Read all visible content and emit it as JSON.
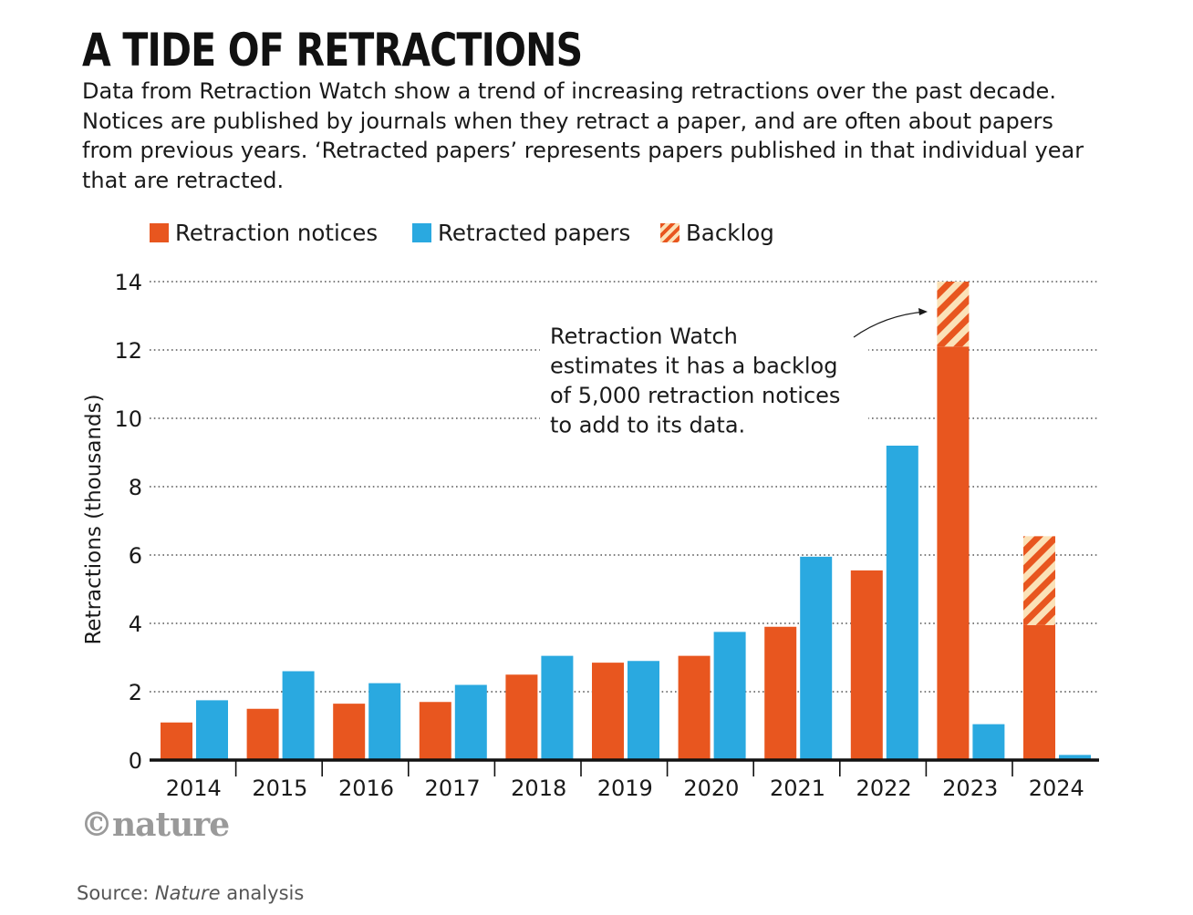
{
  "title": "A TIDE OF RETRACTIONS",
  "subtitle": "Data from Retraction Watch show a trend of increasing retractions over the past decade. Notices are published by journals when they retract a paper, and are often about papers from previous years. ‘Retracted papers’ represents papers published in that individual year that are retracted.",
  "legend": [
    {
      "label": "Retraction notices",
      "swatch": "orange"
    },
    {
      "label": "Retracted papers",
      "swatch": "blue"
    },
    {
      "label": "Backlog",
      "swatch": "hatch"
    }
  ],
  "annotation": {
    "lines": [
      "Retraction Watch",
      "estimates it has a backlog",
      "of 5,000 retraction notices",
      "to add to its data."
    ]
  },
  "logo": "©nature",
  "source": {
    "prefix": "Source: ",
    "italic": "Nature",
    "suffix": " analysis"
  },
  "colors": {
    "notices": "#e8561f",
    "papers": "#2aa9e0",
    "backlog_light": "#fbe2b8",
    "axis": "#111111",
    "grid": "#555555"
  },
  "chart_data": {
    "type": "bar",
    "categories": [
      "2014",
      "2015",
      "2016",
      "2017",
      "2018",
      "2019",
      "2020",
      "2021",
      "2022",
      "2023",
      "2024"
    ],
    "series": [
      {
        "name": "Retraction notices",
        "values": [
          1.1,
          1.5,
          1.65,
          1.7,
          2.5,
          2.85,
          3.05,
          3.9,
          5.55,
          12.1,
          3.95
        ]
      },
      {
        "name": "Retracted papers",
        "values": [
          1.75,
          2.6,
          2.25,
          2.2,
          3.05,
          2.9,
          3.75,
          5.95,
          9.2,
          1.05,
          0.15
        ]
      },
      {
        "name": "Backlog",
        "values": [
          0,
          0,
          0,
          0,
          0,
          0,
          0,
          0,
          0,
          1.9,
          2.6
        ]
      }
    ],
    "ylabel": "Retractions (thousands)",
    "xlabel": "",
    "ylim": [
      0,
      14
    ],
    "yticks": [
      0,
      2,
      4,
      6,
      8,
      10,
      12,
      14
    ],
    "grid": true,
    "legend_position": "top-left"
  }
}
